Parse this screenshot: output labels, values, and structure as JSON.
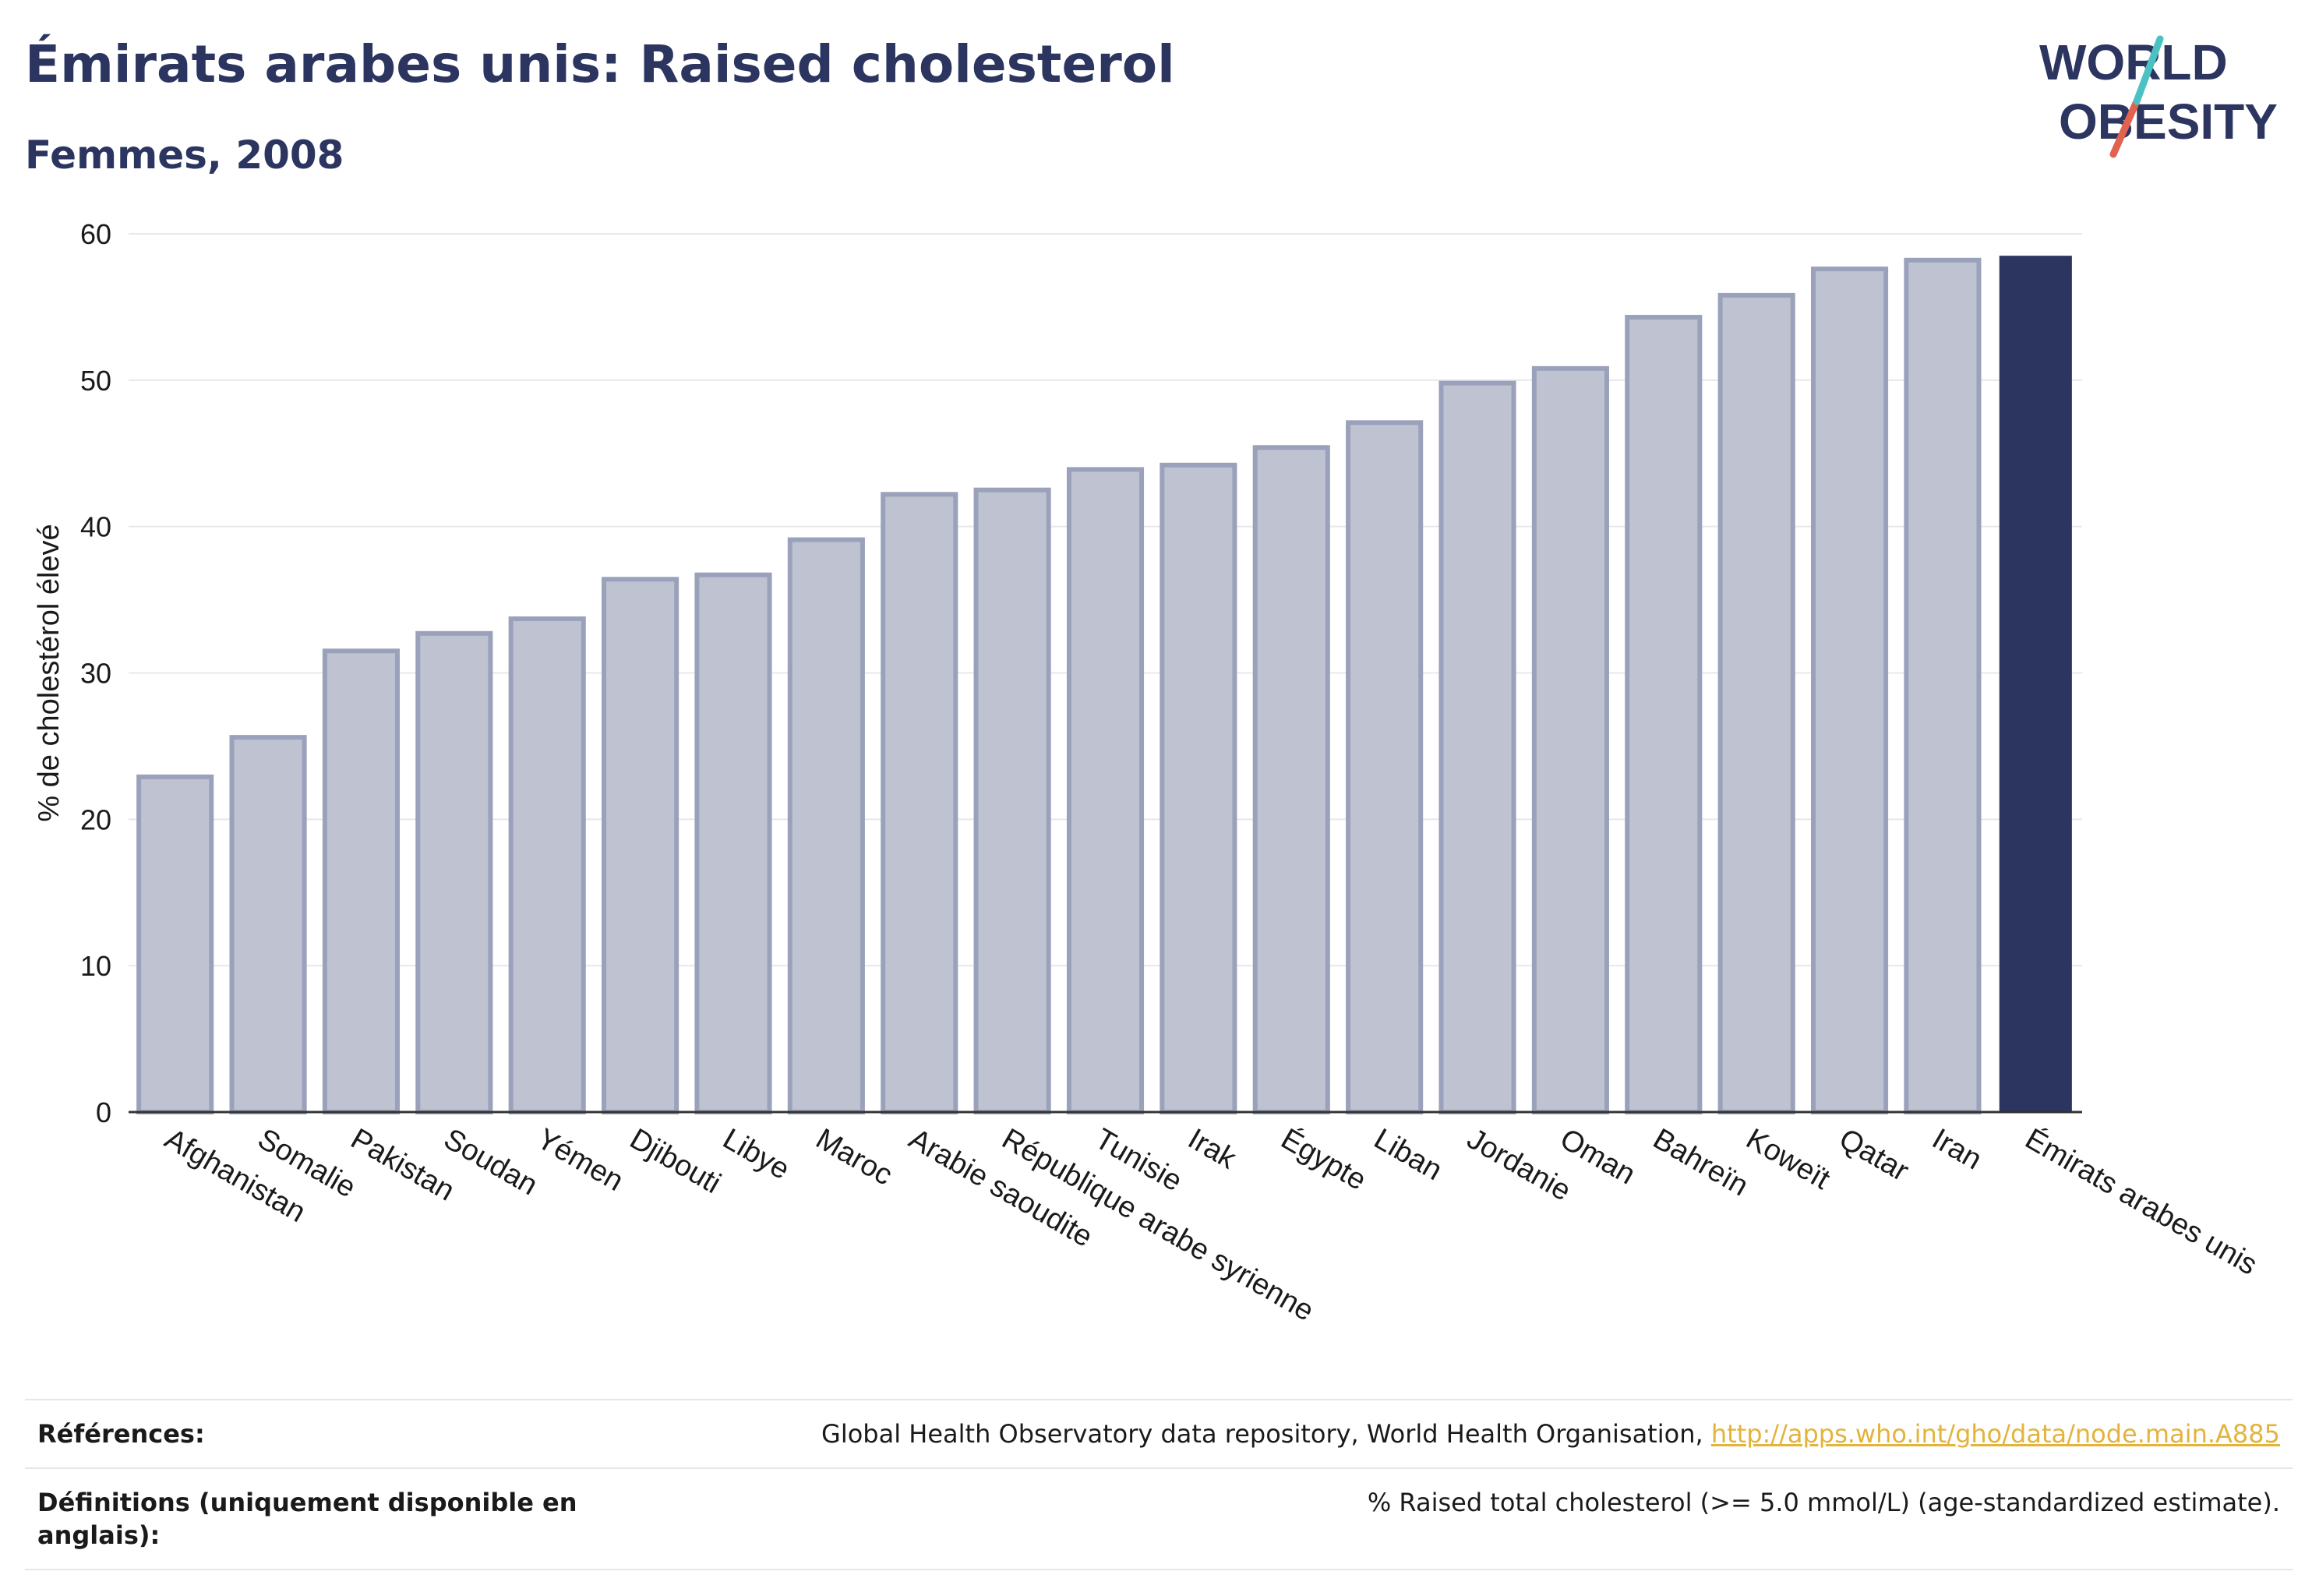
{
  "header": {
    "title": "Émirats arabes unis: Raised cholesterol",
    "subtitle": "Femmes, 2008"
  },
  "logo": {
    "line1": "WORLD",
    "line2": "OBESITY"
  },
  "colors": {
    "highlight": "#2b3560",
    "bar_fill": "#bfc3d1",
    "bar_stroke": "#9aa1ba",
    "link": "#e3b33b"
  },
  "chart_data": {
    "type": "bar",
    "title": "Émirats arabes unis: Raised cholesterol",
    "subtitle": "Femmes, 2008",
    "xlabel": "",
    "ylabel": "% de cholestérol élevé",
    "ylim": [
      0,
      60
    ],
    "yticks": [
      0,
      10,
      20,
      30,
      40,
      50,
      60
    ],
    "grid": true,
    "categories": [
      "Afghanistan",
      "Somalie",
      "Pakistan",
      "Soudan",
      "Yémen",
      "Djibouti",
      "Libye",
      "Maroc",
      "Arabie saoudite",
      "République arabe syrienne",
      "Tunisie",
      "Irak",
      "Égypte",
      "Liban",
      "Jordanie",
      "Oman",
      "Bahreïn",
      "Koweït",
      "Qatar",
      "Iran",
      "Émirats arabes unis"
    ],
    "values": [
      22.9,
      25.6,
      31.5,
      32.7,
      33.7,
      36.4,
      36.7,
      39.1,
      42.2,
      42.5,
      43.9,
      44.2,
      45.4,
      47.1,
      49.8,
      50.8,
      54.3,
      55.8,
      57.6,
      58.2,
      58.5
    ],
    "highlight": "Émirats arabes unis"
  },
  "footer": {
    "references_label": "Références:",
    "references_text": "Global Health Observatory data repository, World Health Organisation, ",
    "references_link": "http://apps.who.int/gho/data/node.main.A885",
    "definitions_label": "Définitions (uniquement disponible en anglais):",
    "definitions_text": "% Raised total cholesterol (>= 5.0 mmol/L) (age-standardized estimate)."
  }
}
